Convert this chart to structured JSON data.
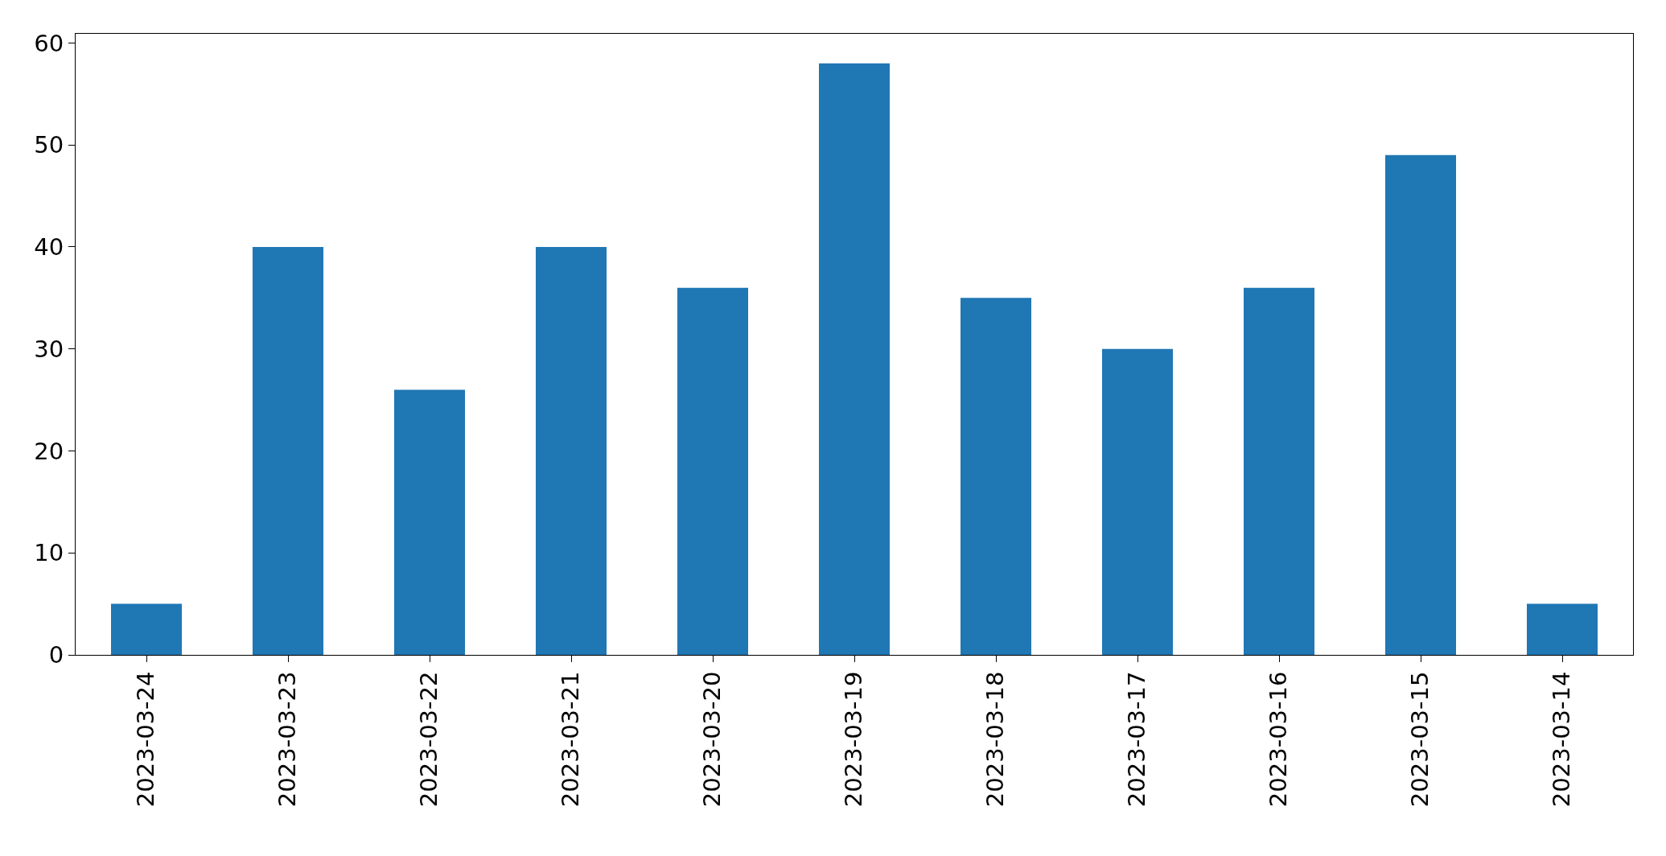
{
  "chart_data": {
    "type": "bar",
    "categories": [
      "2023-03-24",
      "2023-03-23",
      "2023-03-22",
      "2023-03-21",
      "2023-03-20",
      "2023-03-19",
      "2023-03-18",
      "2023-03-17",
      "2023-03-16",
      "2023-03-15",
      "2023-03-14"
    ],
    "values": [
      5,
      40,
      26,
      40,
      36,
      58,
      35,
      30,
      36,
      49,
      5
    ],
    "color": "#1f77b4",
    "ylim": [
      0,
      60.9
    ],
    "yticks": [
      0,
      10,
      20,
      30,
      40,
      50,
      60
    ],
    "grid": false,
    "legend": false
  }
}
